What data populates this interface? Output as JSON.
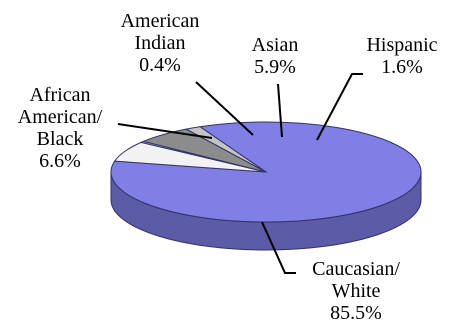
{
  "chart_data": {
    "type": "pie",
    "title": "",
    "three_d": true,
    "legend": "none",
    "slices": [
      {
        "name_lines": [
          "Caucasian/",
          "White"
        ],
        "value": 85.5,
        "value_text": "85.5%",
        "color": "#7f7fe6"
      },
      {
        "name_lines": [
          "African",
          "American/",
          "Black"
        ],
        "value": 6.6,
        "value_text": "6.6%",
        "color": "#f2f2f2"
      },
      {
        "name_lines": [
          "American",
          "Indian"
        ],
        "value": 0.4,
        "value_text": "0.4%",
        "color": "#d9d9d9"
      },
      {
        "name_lines": [
          "Asian"
        ],
        "value": 5.9,
        "value_text": "5.9%",
        "color": "#8c8c8c"
      },
      {
        "name_lines": [
          "Hispanic"
        ],
        "value": 1.6,
        "value_text": "1.6%",
        "color": "#c4c4c4"
      }
    ]
  }
}
